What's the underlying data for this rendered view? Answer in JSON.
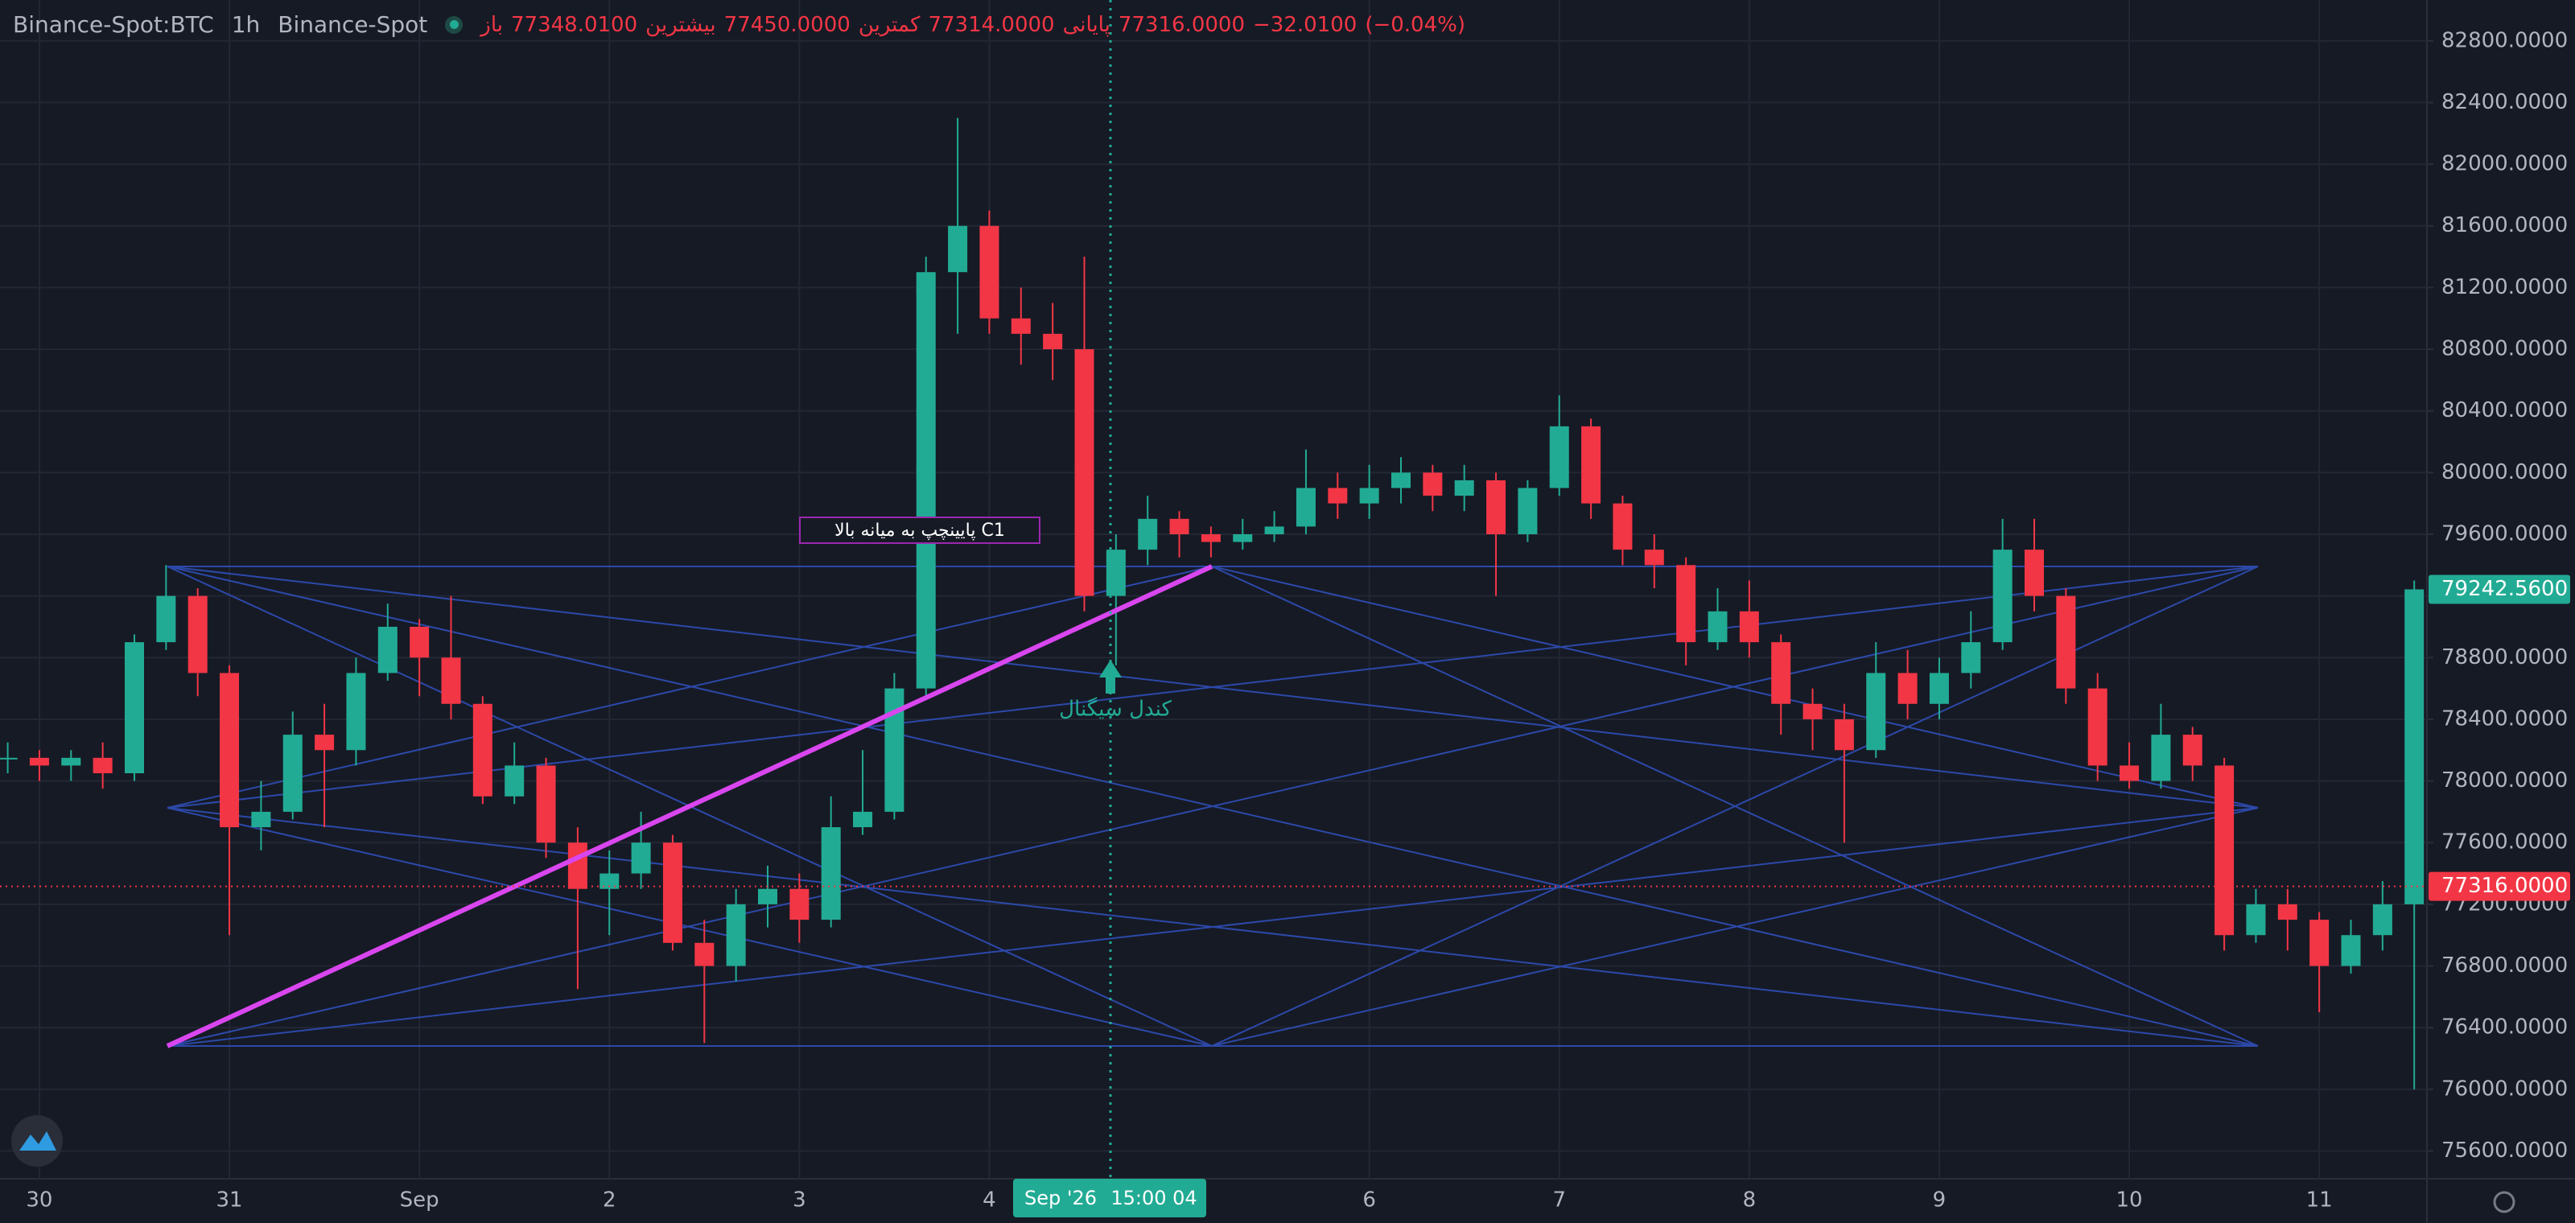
{
  "header": {
    "symbol": "Binance-Spot:BTC",
    "interval": "1h",
    "exchange": "Binance-Spot",
    "ohlc": [
      {
        "label": "باز",
        "value": "77348.0100"
      },
      {
        "label": "بیشترین",
        "value": "77450.0000"
      },
      {
        "label": "کمترین",
        "value": "77314.0000"
      },
      {
        "label": "پایانی",
        "value": "77316.0000"
      }
    ],
    "change": "−32.0100",
    "change_pct": "(−0.04%)"
  },
  "chart_data": {
    "type": "candlestick",
    "categories": [
      null,
      "30",
      null,
      null,
      null,
      null,
      null,
      "31",
      null,
      null,
      null,
      null,
      null,
      "Sep",
      null,
      null,
      null,
      null,
      null,
      "2",
      null,
      null,
      null,
      null,
      null,
      "3",
      null,
      null,
      null,
      null,
      null,
      "4",
      null,
      null,
      null,
      null,
      null,
      null,
      null,
      null,
      null,
      null,
      null,
      "6",
      null,
      null,
      null,
      null,
      null,
      "7",
      null,
      null,
      null,
      null,
      null,
      "8",
      null,
      null,
      null,
      null,
      null,
      "9",
      null,
      null,
      null,
      null,
      null,
      "10",
      null,
      null,
      null,
      null,
      null,
      "11",
      null,
      null,
      null
    ],
    "open": [
      78150,
      78150,
      78100,
      78150,
      78050,
      78900,
      79200,
      78700,
      77700,
      77800,
      78300,
      78200,
      78700,
      79000,
      78800,
      78500,
      77900,
      78100,
      77600,
      77300,
      77400,
      77600,
      76950,
      76800,
      77200,
      77300,
      77100,
      77700,
      77800,
      78600,
      81300,
      81600,
      81000,
      80900,
      80800,
      79200,
      79500,
      79700,
      79600,
      79550,
      79600,
      79650,
      79900,
      79800,
      79900,
      80000,
      79850,
      79950,
      79600,
      79900,
      80300,
      79800,
      79500,
      79400,
      78900,
      79100,
      78900,
      78500,
      78400,
      78200,
      78700,
      78500,
      78700,
      78900,
      79500,
      79200,
      78600,
      78100,
      78000,
      78300,
      78100,
      77000,
      77200,
      77100,
      76800,
      77000,
      77200
    ],
    "high": [
      78250,
      78200,
      78200,
      78250,
      78950,
      79400,
      79250,
      78750,
      78000,
      78450,
      78500,
      78800,
      79150,
      79050,
      79200,
      78550,
      78250,
      78150,
      77700,
      77550,
      77800,
      77650,
      77100,
      77300,
      77450,
      77400,
      77900,
      78200,
      78700,
      81400,
      82300,
      81700,
      81200,
      81100,
      81400,
      79600,
      79850,
      79750,
      79650,
      79700,
      79750,
      80150,
      80000,
      80050,
      80100,
      80050,
      80050,
      80000,
      79950,
      80500,
      80350,
      79850,
      79600,
      79450,
      79250,
      79300,
      78950,
      78600,
      78500,
      78900,
      78850,
      78800,
      79100,
      79700,
      79700,
      79250,
      78700,
      78250,
      78500,
      78350,
      78150,
      77300,
      77300,
      77150,
      77100,
      77350,
      79300
    ],
    "low": [
      78050,
      78000,
      78000,
      77950,
      78000,
      78850,
      78550,
      77000,
      77550,
      77750,
      77700,
      78100,
      78650,
      78550,
      78400,
      77850,
      77850,
      77500,
      76650,
      77000,
      77300,
      76900,
      76300,
      76700,
      77050,
      76950,
      77050,
      77650,
      77750,
      78550,
      80900,
      80900,
      80700,
      80600,
      79100,
      78750,
      79400,
      79450,
      79450,
      79500,
      79550,
      79600,
      79700,
      79700,
      79800,
      79750,
      79750,
      79200,
      79550,
      79850,
      79700,
      79400,
      79250,
      78750,
      78850,
      78800,
      78300,
      78200,
      77600,
      78150,
      78400,
      78400,
      78600,
      78850,
      79100,
      78500,
      78000,
      77950,
      77950,
      78000,
      76900,
      76950,
      76900,
      76500,
      76750,
      76900,
      76000
    ],
    "close": [
      78150,
      78100,
      78150,
      78050,
      78900,
      79200,
      78700,
      77700,
      77800,
      78300,
      78200,
      78700,
      79000,
      78800,
      78500,
      77900,
      78100,
      77600,
      77300,
      77400,
      77600,
      76950,
      76800,
      77200,
      77300,
      77100,
      77700,
      77800,
      78600,
      81300,
      81600,
      81000,
      80900,
      80800,
      79200,
      79500,
      79700,
      79600,
      79550,
      79600,
      79650,
      79900,
      79800,
      79900,
      80000,
      79850,
      79950,
      79600,
      79900,
      80300,
      79800,
      79500,
      79400,
      78900,
      79100,
      78900,
      78500,
      78400,
      78200,
      78700,
      78500,
      78700,
      78900,
      79500,
      79200,
      78600,
      78100,
      78000,
      78300,
      78100,
      77000,
      77200,
      77100,
      76800,
      77000,
      77200,
      79242.56
    ],
    "up_color": "#22ab94",
    "down_color": "#f23645",
    "ylim": [
      75420,
      83065
    ],
    "yticks": [
      {
        "value": 75600,
        "label": "75600.0000"
      },
      {
        "value": 76000,
        "label": "76000.0000"
      },
      {
        "value": 76400,
        "label": "76400.0000"
      },
      {
        "value": 76800,
        "label": "76800.0000"
      },
      {
        "value": 77200,
        "label": "77200.0000"
      },
      {
        "value": 77600,
        "label": "77600.0000"
      },
      {
        "value": 78000,
        "label": "78000.0000"
      },
      {
        "value": 78400,
        "label": "78400.0000"
      },
      {
        "value": 78800,
        "label": "78800.0000"
      },
      {
        "value": 79200,
        "label": "79200.0000"
      },
      {
        "value": 79600,
        "label": "79600.0000"
      },
      {
        "value": 80000,
        "label": "80000.0000"
      },
      {
        "value": 80400,
        "label": "80400.0000"
      },
      {
        "value": 80800,
        "label": "80800.0000"
      },
      {
        "value": 81200,
        "label": "81200.0000"
      },
      {
        "value": 81600,
        "label": "81600.0000"
      },
      {
        "value": 82000,
        "label": "82000.0000"
      },
      {
        "value": 82400,
        "label": "82400.0000"
      },
      {
        "value": 82800,
        "label": "82800.0000"
      }
    ],
    "grid": true,
    "price_tags": [
      {
        "value": 79242.56,
        "label": "79242.5600",
        "color": "#22ab94"
      },
      {
        "value": 77316,
        "label": "77316.0000",
        "color": "#f23645"
      }
    ],
    "crosshair": {
      "date": "Sep '26",
      "time": "15:00 04"
    },
    "annotations": {
      "box": "پایینچپ به میانه بالا C1",
      "signal": "کندل سیگنال"
    }
  }
}
